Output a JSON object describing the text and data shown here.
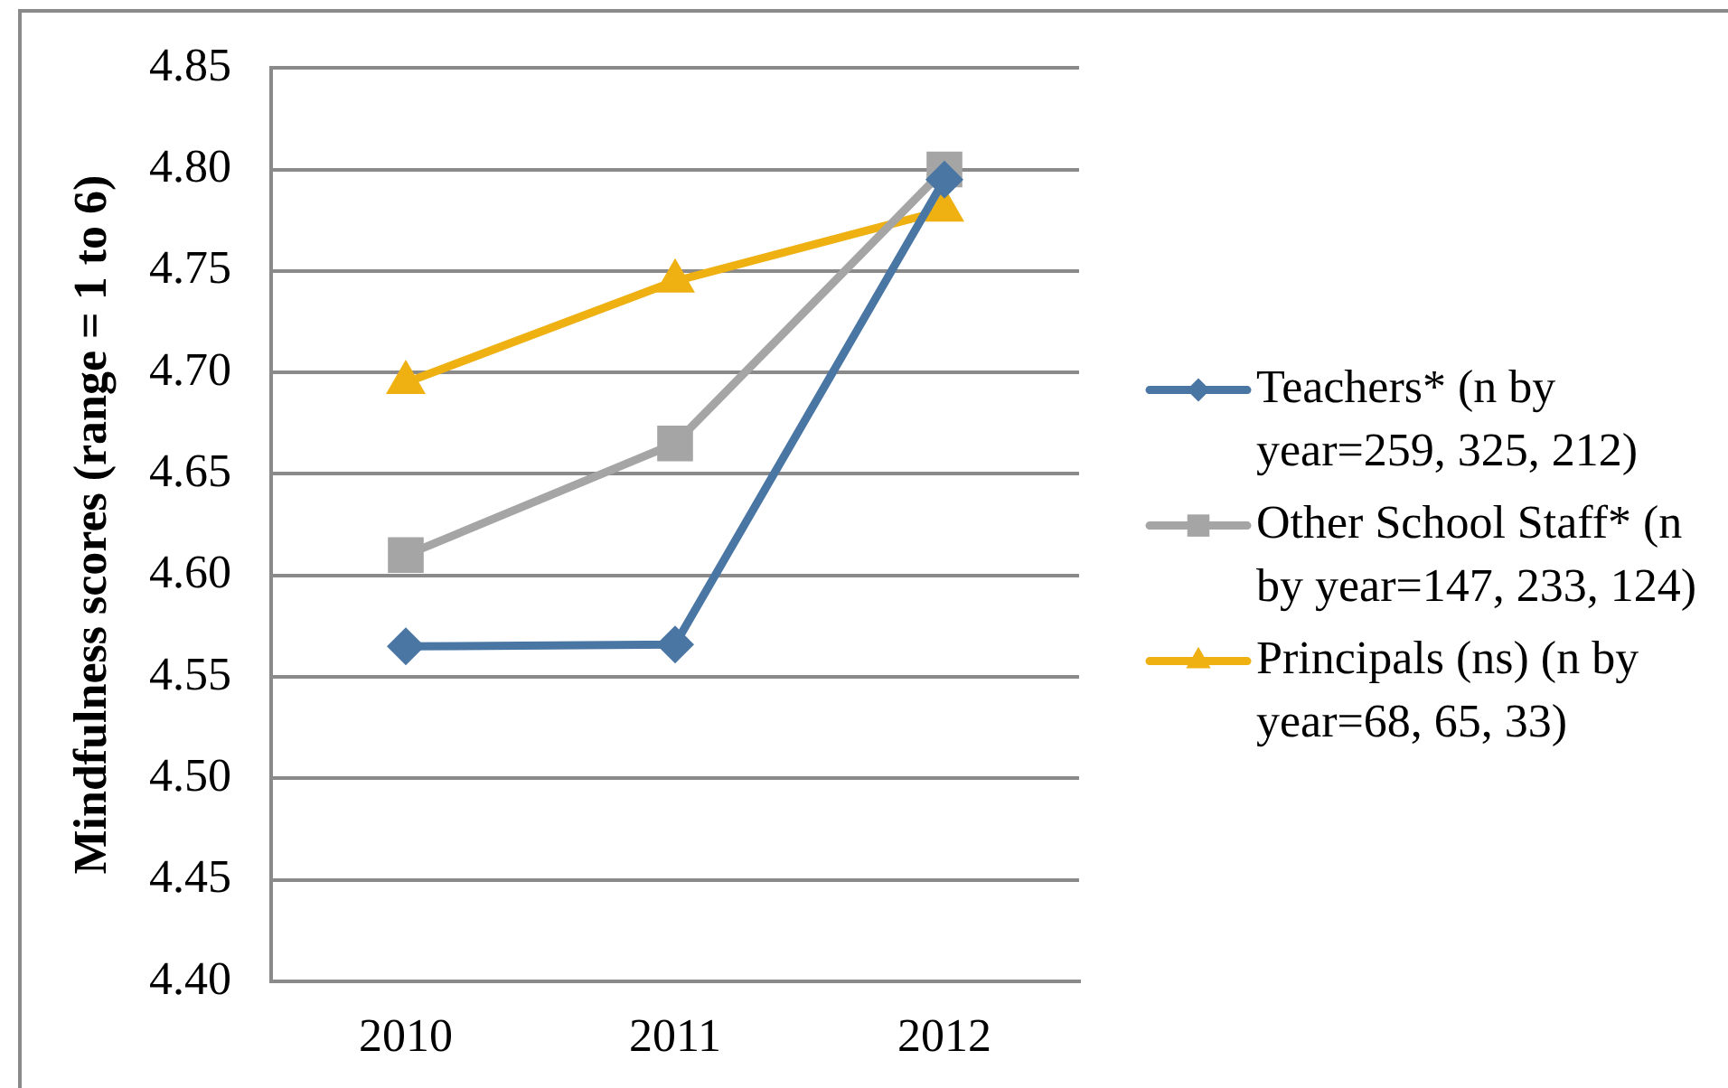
{
  "chart_data": {
    "type": "line",
    "ylabel": "Mindfulness scores (range = 1 to 6)",
    "categories": [
      "2010",
      "2011",
      "2012"
    ],
    "series": [
      {
        "name": "Teachers* (n by year=259, 325, 212)",
        "color": "#4a76a4",
        "marker": "diamond",
        "values": [
          4.565,
          4.566,
          4.795
        ]
      },
      {
        "name": "Other School Staff* (n by year=147, 233, 124)",
        "color": "#a5a5a5",
        "marker": "square",
        "values": [
          4.61,
          4.665,
          4.8
        ]
      },
      {
        "name": "Principals (ns) (n by year=68, 65, 33)",
        "color": "#efb112",
        "marker": "triangle",
        "values": [
          4.695,
          4.745,
          4.78
        ]
      }
    ],
    "ylim": [
      4.4,
      4.85
    ],
    "yticks": [
      {
        "value": 4.4,
        "label": "4.40"
      },
      4.45,
      {
        "value": 4.5,
        "label": "4.50"
      },
      4.55,
      {
        "value": 4.6,
        "label": "4.60"
      },
      4.65,
      {
        "value": 4.7,
        "label": "4.70"
      },
      4.75,
      {
        "value": 4.8,
        "label": "4.80"
      },
      4.85
    ],
    "grid": "y",
    "legend": "right",
    "line_style": "solid"
  }
}
